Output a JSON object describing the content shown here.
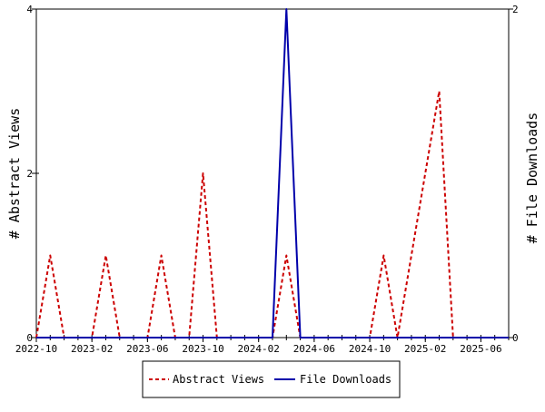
{
  "chart_data": {
    "type": "line",
    "xlabel": "",
    "ylabel_left": "# Abstract Views",
    "ylabel_right": "# File Downloads",
    "ylim_left": [
      0,
      4
    ],
    "ylim_right": [
      0,
      2
    ],
    "yticks_left": [
      "0",
      "2",
      "4"
    ],
    "yticks_right": [
      "0",
      "2"
    ],
    "x_tick_labels": [
      "2022-10",
      "2023-02",
      "2023-06",
      "2023-10",
      "2024-02",
      "2024-06",
      "2024-10",
      "2025-02",
      "2025-06"
    ],
    "x_months": [
      "2022-10",
      "2022-11",
      "2022-12",
      "2023-01",
      "2023-02",
      "2023-03",
      "2023-04",
      "2023-05",
      "2023-06",
      "2023-07",
      "2023-08",
      "2023-09",
      "2023-10",
      "2023-11",
      "2023-12",
      "2024-01",
      "2024-02",
      "2024-03",
      "2024-04",
      "2024-05",
      "2024-06",
      "2024-07",
      "2024-08",
      "2024-09",
      "2024-10",
      "2024-11",
      "2024-12",
      "2025-01",
      "2025-02",
      "2025-03",
      "2025-04",
      "2025-05",
      "2025-06",
      "2025-07",
      "2025-08"
    ],
    "series": [
      {
        "name": "Abstract Views",
        "axis": "left",
        "color": "#cc0000",
        "style": "dashed",
        "values": [
          0,
          1,
          0,
          0,
          0,
          1,
          0,
          0,
          0,
          1,
          0,
          0,
          2,
          0,
          0,
          0,
          0,
          0,
          1,
          0,
          0,
          0,
          0,
          0,
          0,
          1,
          0,
          1,
          2,
          3,
          0,
          0,
          0,
          0,
          0
        ]
      },
      {
        "name": "File Downloads",
        "axis": "right",
        "color": "#0000aa",
        "style": "solid",
        "values": [
          0,
          0,
          0,
          0,
          0,
          0,
          0,
          0,
          0,
          0,
          0,
          0,
          0,
          0,
          0,
          0,
          0,
          0,
          2,
          0,
          0,
          0,
          0,
          0,
          0,
          0,
          0,
          0,
          0,
          0,
          0,
          0,
          0,
          0,
          0
        ]
      }
    ],
    "legend_position": "bottom"
  }
}
